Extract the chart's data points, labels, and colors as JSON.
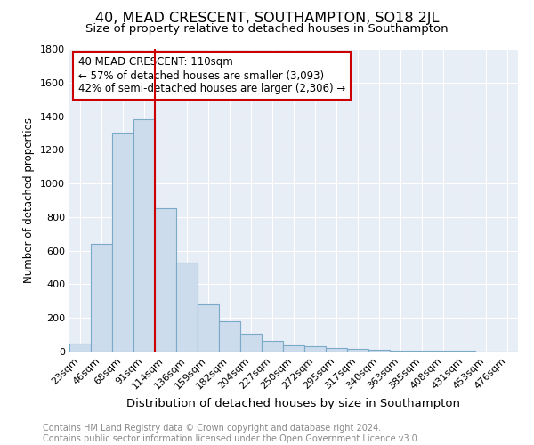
{
  "title": "40, MEAD CRESCENT, SOUTHAMPTON, SO18 2JL",
  "subtitle": "Size of property relative to detached houses in Southampton",
  "xlabel": "Distribution of detached houses by size in Southampton",
  "ylabel": "Number of detached properties",
  "categories": [
    "23sqm",
    "46sqm",
    "68sqm",
    "91sqm",
    "114sqm",
    "136sqm",
    "159sqm",
    "182sqm",
    "204sqm",
    "227sqm",
    "250sqm",
    "272sqm",
    "295sqm",
    "317sqm",
    "340sqm",
    "363sqm",
    "385sqm",
    "408sqm",
    "431sqm",
    "453sqm",
    "476sqm"
  ],
  "values": [
    50,
    640,
    1300,
    1380,
    850,
    530,
    280,
    180,
    105,
    65,
    35,
    30,
    20,
    15,
    10,
    7,
    5,
    4,
    3,
    2,
    2
  ],
  "bar_color": "#ccdcec",
  "bar_edge_color": "#7aaac8",
  "property_line_color": "#cc0000",
  "property_line_index": 3.5,
  "annotation_line1": "40 MEAD CRESCENT: 110sqm",
  "annotation_line2": "← 57% of detached houses are smaller (3,093)",
  "annotation_line3": "42% of semi-detached houses are larger (2,306) →",
  "annotation_box_color": "#ffffff",
  "annotation_box_edge_color": "#cc0000",
  "ylim": [
    0,
    1800
  ],
  "yticks": [
    0,
    200,
    400,
    600,
    800,
    1000,
    1200,
    1400,
    1600,
    1800
  ],
  "background_color": "#e8eef6",
  "footer_line1": "Contains HM Land Registry data © Crown copyright and database right 2024.",
  "footer_line2": "Contains public sector information licensed under the Open Government Licence v3.0.",
  "title_fontsize": 11.5,
  "subtitle_fontsize": 9.5,
  "xlabel_fontsize": 9.5,
  "ylabel_fontsize": 8.5,
  "tick_fontsize": 8,
  "annotation_fontsize": 8.5,
  "footer_fontsize": 7
}
